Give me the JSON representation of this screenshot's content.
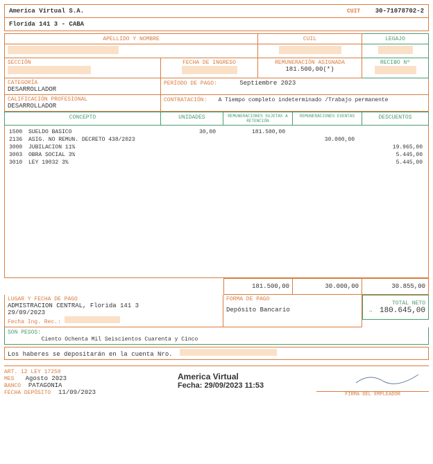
{
  "company": {
    "name": "America Virtual S.A.",
    "cuit_label": "CUIT",
    "cuit": "30-71078702-2",
    "address": "Florida 141 3  - CABA"
  },
  "head": {
    "apellido_label": "APELLIDO Y NOMBRE",
    "cuil_label": "CUIL",
    "legajo_label": "LEGAJO"
  },
  "section": {
    "seccion_label": "SECCIÓN",
    "ingreso_label": "FECHA DE INGRESO",
    "remun_label": "REMUNERACIÓN ASIGNADA",
    "remun_value": "181.500,00(*)",
    "recibo_label": "RECIBO Nº",
    "categoria_label": "CATEGORÍA",
    "categoria_value": "DESARROLLADOR",
    "periodo_label": "PERÍODO DE PAGO:",
    "periodo_value": "Septiembre 2023",
    "calif_label": "CALIFICACIÓN PROFESIONAL",
    "calif_value": "DESARROLLADOR",
    "contrat_label": "CONTRATACIÓN:",
    "contrat_value": "A Tiempo completo indeterminado /Trabajo permanente"
  },
  "cols": {
    "concepto": "CONCEPTO",
    "unidades": "UNIDADES",
    "sujetas": "REMUNERACIONES SUJETAS A RETENCIÓN",
    "exentas": "REMUNERACIONES EXENTAS",
    "descuentos": "DESCUENTOS"
  },
  "lines": [
    {
      "code": "1500",
      "desc": "SUELDO BASICO",
      "uni": "30,00",
      "suj": "181.500,00",
      "exe": "",
      "des": ""
    },
    {
      "code": "2136",
      "desc": "ASIG. NO REMUN. DECRETO 438/2023",
      "uni": "",
      "suj": "",
      "exe": "30.000,00",
      "des": ""
    },
    {
      "code": "3000",
      "desc": "JUBILACION 11%",
      "uni": "",
      "suj": "",
      "exe": "",
      "des": "19.965,00"
    },
    {
      "code": "3003",
      "desc": "OBRA SOCIAL 3%",
      "uni": "",
      "suj": "",
      "exe": "",
      "des": "5.445,00"
    },
    {
      "code": "3010",
      "desc": "LEY 19032 3%",
      "uni": "",
      "suj": "",
      "exe": "",
      "des": "5.445,00"
    }
  ],
  "totals": {
    "suj": "181.500,00",
    "exe": "30.000,00",
    "des": "30.855,00",
    "neto_label": "TOTAL NETO →",
    "neto": "180.645,00"
  },
  "pago": {
    "lugar_label": "LUGAR Y FECHA DE PAGO",
    "lugar_value_1": "ADMISTRACION CENTRAL, Florida  141 3",
    "lugar_value_2": "29/09/2023",
    "fecha_ing_label": "Fecha Ing. Rec.:",
    "forma_label": "FORMA DE PAGO",
    "forma_value": "Depósito Bancario"
  },
  "pesos": {
    "label": "SON PESOS:",
    "words": "Ciento Ochenta Mil Seiscientos Cuarenta y Cinco"
  },
  "deposito": {
    "text": "Los haberes se depositarán en la cuenta Nro."
  },
  "footer": {
    "art_label": "ART. 12 LEY 17250",
    "mes_label": "MES",
    "mes_value": "Agosto 2023",
    "banco_label": "BANCO",
    "banco_value": "PATAGONIA",
    "fecha_dep_label": "FECHA DEPÓSITO",
    "fecha_dep_value": "11/09/2023",
    "stamp_company": "America Virtual",
    "stamp_fecha": "Fecha: 29/09/2023 11:53",
    "firma_label": "FIRMA DEL EMPLEADOR"
  },
  "colors": {
    "orange": "#d97b3f",
    "green": "#4a9b6e",
    "redact": "#fbe0c8",
    "text": "#333333"
  }
}
